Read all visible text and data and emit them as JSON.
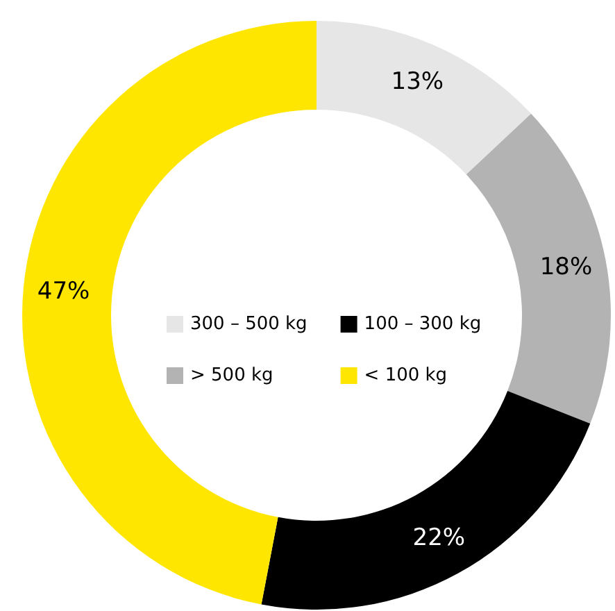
{
  "chart_data": {
    "type": "donut",
    "categories": [
      "300 – 500 kg",
      "> 500 kg",
      "100 – 300 kg",
      "< 100 kg"
    ],
    "values": [
      13,
      18,
      22,
      47
    ],
    "value_labels": [
      "13%",
      "18%",
      "22%",
      "47%"
    ],
    "colors": [
      "#e6e6e6",
      "#b3b3b3",
      "#000000",
      "#ffe600"
    ],
    "legend": "center"
  }
}
